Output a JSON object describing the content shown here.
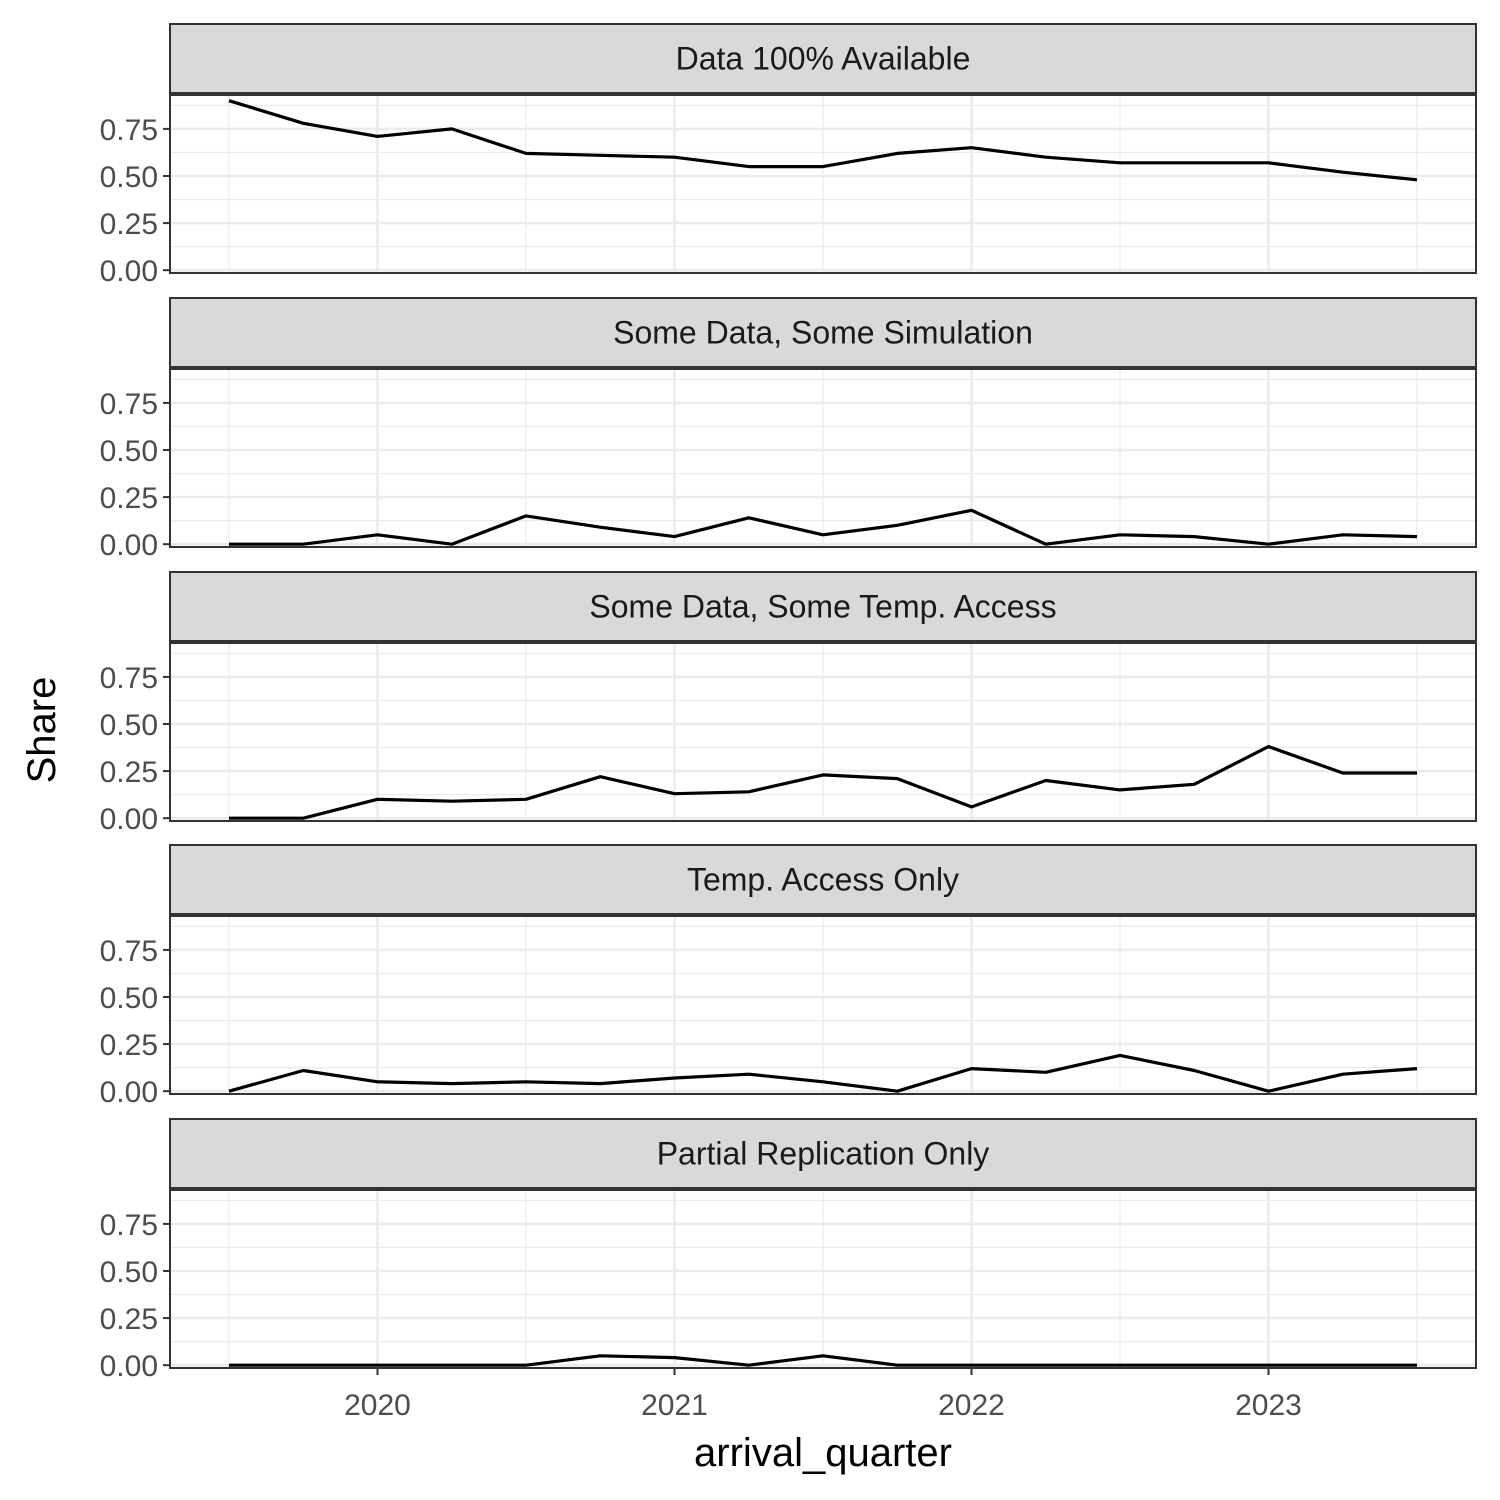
{
  "chart_data": {
    "type": "line",
    "facet_layout": "vertical",
    "xlabel": "arrival_quarter",
    "ylabel": "Share",
    "x_ticks": [
      "2020",
      "2021",
      "2022",
      "2023"
    ],
    "y_ticks": [
      "0.00",
      "0.25",
      "0.50",
      "0.75"
    ],
    "ylim": [
      0,
      0.93
    ],
    "grid": true,
    "line_color": "#000000",
    "x": [
      "2019 Q3",
      "2019 Q4",
      "2020 Q1",
      "2020 Q2",
      "2020 Q3",
      "2020 Q4",
      "2021 Q1",
      "2021 Q2",
      "2021 Q3",
      "2021 Q4",
      "2022 Q1",
      "2022 Q2",
      "2022 Q3",
      "2022 Q4",
      "2023 Q1",
      "2023 Q2",
      "2023 Q3"
    ],
    "panels": [
      {
        "title": "Data 100% Available",
        "values": [
          0.9,
          0.78,
          0.71,
          0.75,
          0.62,
          0.61,
          0.6,
          0.55,
          0.55,
          0.62,
          0.65,
          0.6,
          0.57,
          0.57,
          0.57,
          0.52,
          0.48
        ]
      },
      {
        "title": "Some Data, Some Simulation",
        "values": [
          0.0,
          0.0,
          0.05,
          0.0,
          0.15,
          0.09,
          0.04,
          0.14,
          0.05,
          0.1,
          0.18,
          0.0,
          0.05,
          0.04,
          0.0,
          0.05,
          0.04
        ]
      },
      {
        "title": "Some Data, Some Temp. Access",
        "values": [
          0.0,
          0.0,
          0.1,
          0.09,
          0.1,
          0.22,
          0.13,
          0.14,
          0.23,
          0.21,
          0.06,
          0.2,
          0.15,
          0.18,
          0.38,
          0.24,
          0.24
        ]
      },
      {
        "title": "Temp. Access Only",
        "values": [
          0.0,
          0.11,
          0.05,
          0.04,
          0.05,
          0.04,
          0.07,
          0.09,
          0.05,
          0.0,
          0.12,
          0.1,
          0.19,
          0.11,
          0.0,
          0.09,
          0.12
        ]
      },
      {
        "title": "Partial Replication Only",
        "values": [
          0.0,
          0.0,
          0.0,
          0.0,
          0.0,
          0.05,
          0.04,
          0.0,
          0.05,
          0.0,
          0.0,
          0.0,
          0.0,
          0.0,
          0.0,
          0.0,
          0.0
        ]
      }
    ]
  }
}
